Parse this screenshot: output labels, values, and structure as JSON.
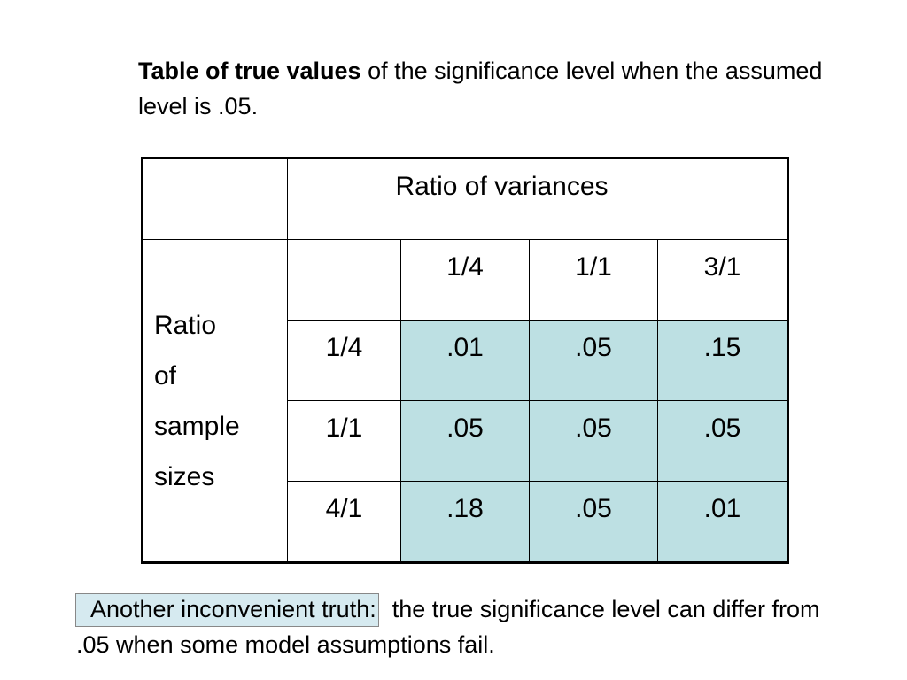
{
  "heading": {
    "bold": "Table of true values",
    "text": " of the significance level when the assumed level is .05."
  },
  "table": {
    "column_group": "Ratio of variances",
    "row_group": "Ratio of sample sizes",
    "columns": [
      "1/4",
      "1/1",
      "3/1"
    ],
    "rows": [
      {
        "label": "1/4",
        "cells": [
          ".01",
          ".05",
          ".15"
        ]
      },
      {
        "label": "1/1",
        "cells": [
          ".05",
          ".05",
          ".05"
        ]
      },
      {
        "label": "4/1",
        "cells": [
          ".18",
          ".05",
          ".01"
        ]
      }
    ]
  },
  "note": {
    "highlight": "Another inconvenient truth:",
    "text": "  the true significance level can differ from .05 when some model assumptions fail."
  }
}
